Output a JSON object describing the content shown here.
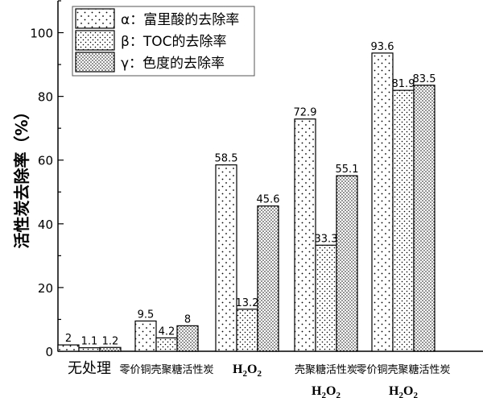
{
  "chart_data": {
    "type": "bar",
    "ylabel": "活性炭去除率（%）",
    "ylim": [
      0,
      110
    ],
    "yticks": [
      0,
      20,
      40,
      60,
      80,
      100
    ],
    "grid": false,
    "legend_placement": "top-left",
    "categories": [
      {
        "line1": "无处理",
        "line2": ""
      },
      {
        "line1": "零价铜壳聚糖活性炭",
        "line2": ""
      },
      {
        "line1": "H2O2",
        "line2": ""
      },
      {
        "line1": "壳聚糖活性炭",
        "line2": "H2O2"
      },
      {
        "line1": "零价铜壳聚糖活性炭",
        "line2": "H2O2"
      }
    ],
    "series": [
      {
        "name": "α：富里酸的去除率",
        "values": [
          2,
          9.5,
          58.5,
          72.9,
          93.6
        ],
        "labels": [
          "2",
          "9.5",
          "58.5",
          "72.9",
          "93.6"
        ],
        "pattern": "sparse-dots"
      },
      {
        "name": "β：TOC的去除率",
        "values": [
          1.1,
          4.2,
          13.2,
          33.3,
          81.9
        ],
        "labels": [
          "1.1",
          "4.2",
          "13.2",
          "33.3",
          "81.9"
        ],
        "pattern": "medium-dots"
      },
      {
        "name": "γ：色度的去除率",
        "values": [
          1.2,
          8,
          45.6,
          55.1,
          83.5
        ],
        "labels": [
          "1.2",
          "8",
          "45.6",
          "55.1",
          "83.5"
        ],
        "pattern": "dense-dots"
      }
    ]
  }
}
